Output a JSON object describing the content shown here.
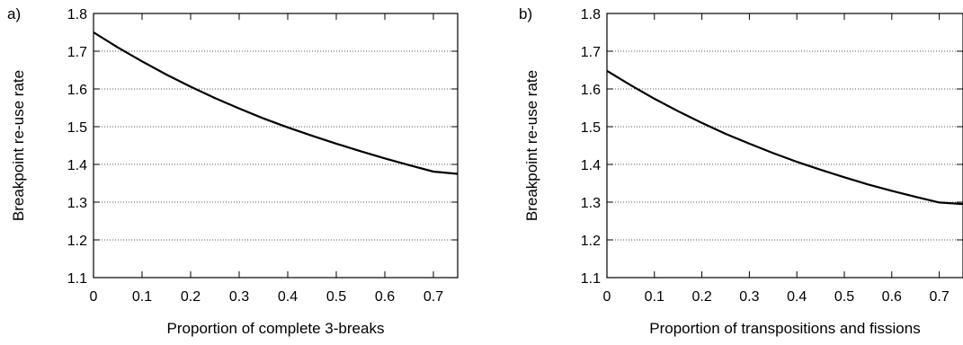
{
  "chart_data": [
    {
      "type": "line",
      "panel_label": "a)",
      "xlabel": "Proportion of complete 3-breaks",
      "ylabel": "Breakpoint re-use rate",
      "xlim": [
        0,
        0.75
      ],
      "ylim": [
        1.1,
        1.8
      ],
      "x_ticks": [
        "0",
        "0.1",
        "0.2",
        "0.3",
        "0.4",
        "0.5",
        "0.6",
        "0.7"
      ],
      "y_ticks": [
        "1.1",
        "1.2",
        "1.3",
        "1.4",
        "1.5",
        "1.6",
        "1.7",
        "1.8"
      ],
      "grid": "horizontal dotted",
      "line_color": "#000000",
      "series": [
        {
          "x": [
            0,
            0.05,
            0.1,
            0.15,
            0.2,
            0.25,
            0.3,
            0.35,
            0.4,
            0.45,
            0.5,
            0.55,
            0.6,
            0.65,
            0.7,
            0.75
          ],
          "y": [
            1.75,
            1.71,
            1.673,
            1.638,
            1.606,
            1.576,
            1.548,
            1.522,
            1.498,
            1.476,
            1.455,
            1.435,
            1.416,
            1.398,
            1.381,
            1.375
          ]
        }
      ]
    },
    {
      "type": "line",
      "panel_label": "b)",
      "xlabel": "Proportion of transpositions and fissions",
      "ylabel": "Breakpoint re-use rate",
      "xlim": [
        0,
        0.75
      ],
      "ylim": [
        1.1,
        1.8
      ],
      "x_ticks": [
        "0",
        "0.1",
        "0.2",
        "0.3",
        "0.4",
        "0.5",
        "0.6",
        "0.7"
      ],
      "y_ticks": [
        "1.1",
        "1.2",
        "1.3",
        "1.4",
        "1.5",
        "1.6",
        "1.7",
        "1.8"
      ],
      "grid": "horizontal dotted",
      "line_color": "#000000",
      "series": [
        {
          "x": [
            0,
            0.05,
            0.1,
            0.15,
            0.2,
            0.25,
            0.3,
            0.35,
            0.4,
            0.45,
            0.5,
            0.55,
            0.6,
            0.65,
            0.7,
            0.75
          ],
          "y": [
            1.648,
            1.61,
            1.574,
            1.541,
            1.51,
            1.481,
            1.455,
            1.43,
            1.407,
            1.386,
            1.366,
            1.347,
            1.33,
            1.314,
            1.299,
            1.295
          ]
        }
      ]
    }
  ]
}
